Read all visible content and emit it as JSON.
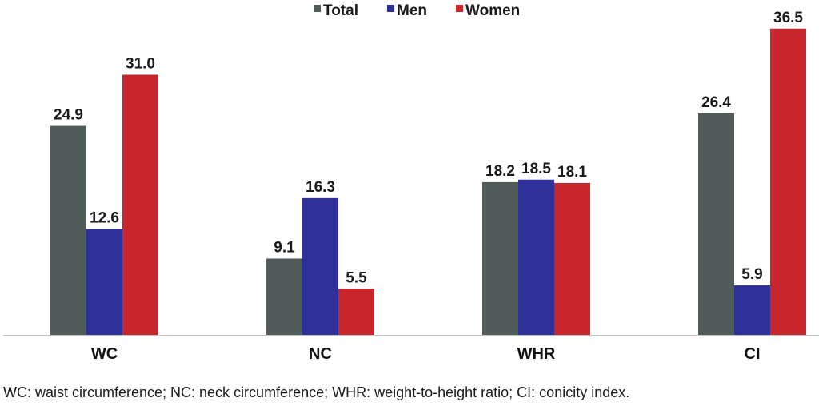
{
  "chart_data": {
    "type": "bar",
    "categories": [
      "WC",
      "NC",
      "WHR",
      "CI"
    ],
    "series": [
      {
        "name": "Total",
        "color": "#4f5c5a",
        "values": [
          24.9,
          9.1,
          18.2,
          26.4
        ]
      },
      {
        "name": "Men",
        "color": "#2e2f99",
        "values": [
          12.6,
          16.3,
          18.5,
          5.9
        ]
      },
      {
        "name": "Women",
        "color": "#c8262c",
        "values": [
          31.0,
          5.5,
          18.1,
          36.5
        ]
      }
    ],
    "value_labels": [
      [
        "24.9",
        "9.1",
        "18.2",
        "26.4"
      ],
      [
        "12.6",
        "16.3",
        "18.5",
        "5.9"
      ],
      [
        "31.0",
        "5.5",
        "18.1",
        "36.5"
      ]
    ],
    "ylim": [
      0,
      38
    ],
    "legend": "top-center",
    "grid": false,
    "footnote": "WC: waist circumference; NC: neck circumference; WHR: weight-to-height ratio; CI: conicity index."
  }
}
